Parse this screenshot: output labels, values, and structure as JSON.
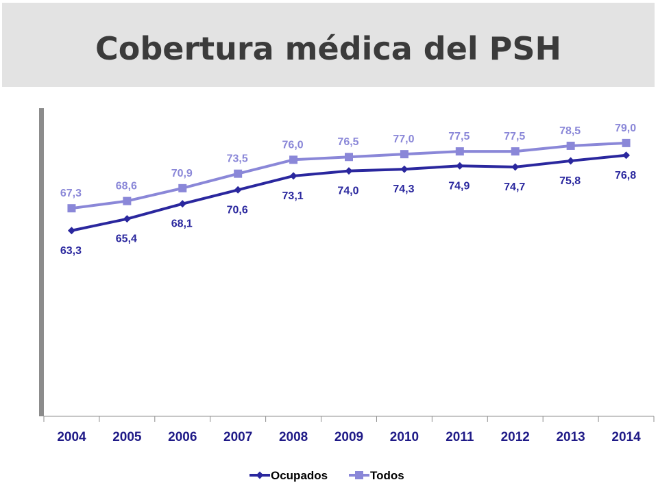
{
  "header": {
    "title": "Cobertura médica del PSH"
  },
  "chart_data": {
    "type": "line",
    "title": "Cobertura médica del PSH",
    "xlabel": "",
    "ylabel": "",
    "categories": [
      "2004",
      "2005",
      "2006",
      "2007",
      "2008",
      "2009",
      "2010",
      "2011",
      "2012",
      "2013",
      "2014"
    ],
    "ylim": [
      30,
      85
    ],
    "grid": false,
    "legend_position": "bottom",
    "series": [
      {
        "name": "Ocupados",
        "color": "#2a279e",
        "marker": "diamond",
        "values": [
          63.3,
          65.4,
          68.1,
          70.6,
          73.1,
          74.0,
          74.3,
          74.9,
          74.7,
          75.8,
          76.8
        ],
        "labels": [
          "63,3",
          "65,4",
          "68,1",
          "70,6",
          "73,1",
          "74,0",
          "74,3",
          "74,9",
          "74,7",
          "75,8",
          "76,8"
        ],
        "label_position": "below"
      },
      {
        "name": "Todos",
        "color": "#8a87d8",
        "marker": "square",
        "values": [
          67.3,
          68.6,
          70.9,
          73.5,
          76.0,
          76.5,
          77.0,
          77.5,
          77.5,
          78.5,
          79.0
        ],
        "labels": [
          "67,3",
          "68,6",
          "70,9",
          "73,5",
          "76,0",
          "76,5",
          "77,0",
          "77,5",
          "77,5",
          "78,5",
          "79,0"
        ],
        "label_position": "above"
      }
    ]
  }
}
